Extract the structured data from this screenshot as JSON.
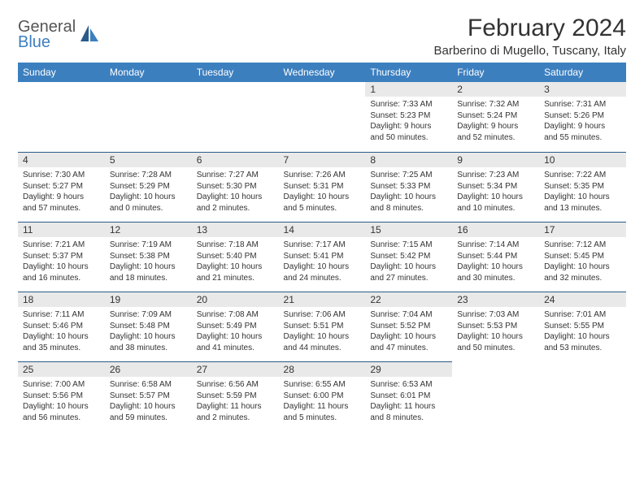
{
  "brand": {
    "line1": "General",
    "line2": "Blue",
    "brand_color": "#3c7fbf"
  },
  "title": "February 2024",
  "location": "Barberino di Mugello, Tuscany, Italy",
  "colors": {
    "header_bg": "#3c7fbf",
    "header_text": "#ffffff",
    "daynum_bg": "#e9e9e9",
    "rule": "#2a5b8a",
    "body_text": "#333333",
    "background": "#ffffff"
  },
  "font_sizes": {
    "title_pt": 30,
    "location_pt": 15,
    "weekday_header_pt": 12,
    "daynum_pt": 12,
    "cell_text_pt": 10
  },
  "weekdays": [
    "Sunday",
    "Monday",
    "Tuesday",
    "Wednesday",
    "Thursday",
    "Friday",
    "Saturday"
  ],
  "weeks": [
    [
      null,
      null,
      null,
      null,
      {
        "d": "1",
        "sr": "Sunrise: 7:33 AM",
        "ss": "Sunset: 5:23 PM",
        "dl1": "Daylight: 9 hours",
        "dl2": "and 50 minutes."
      },
      {
        "d": "2",
        "sr": "Sunrise: 7:32 AM",
        "ss": "Sunset: 5:24 PM",
        "dl1": "Daylight: 9 hours",
        "dl2": "and 52 minutes."
      },
      {
        "d": "3",
        "sr": "Sunrise: 7:31 AM",
        "ss": "Sunset: 5:26 PM",
        "dl1": "Daylight: 9 hours",
        "dl2": "and 55 minutes."
      }
    ],
    [
      {
        "d": "4",
        "sr": "Sunrise: 7:30 AM",
        "ss": "Sunset: 5:27 PM",
        "dl1": "Daylight: 9 hours",
        "dl2": "and 57 minutes."
      },
      {
        "d": "5",
        "sr": "Sunrise: 7:28 AM",
        "ss": "Sunset: 5:29 PM",
        "dl1": "Daylight: 10 hours",
        "dl2": "and 0 minutes."
      },
      {
        "d": "6",
        "sr": "Sunrise: 7:27 AM",
        "ss": "Sunset: 5:30 PM",
        "dl1": "Daylight: 10 hours",
        "dl2": "and 2 minutes."
      },
      {
        "d": "7",
        "sr": "Sunrise: 7:26 AM",
        "ss": "Sunset: 5:31 PM",
        "dl1": "Daylight: 10 hours",
        "dl2": "and 5 minutes."
      },
      {
        "d": "8",
        "sr": "Sunrise: 7:25 AM",
        "ss": "Sunset: 5:33 PM",
        "dl1": "Daylight: 10 hours",
        "dl2": "and 8 minutes."
      },
      {
        "d": "9",
        "sr": "Sunrise: 7:23 AM",
        "ss": "Sunset: 5:34 PM",
        "dl1": "Daylight: 10 hours",
        "dl2": "and 10 minutes."
      },
      {
        "d": "10",
        "sr": "Sunrise: 7:22 AM",
        "ss": "Sunset: 5:35 PM",
        "dl1": "Daylight: 10 hours",
        "dl2": "and 13 minutes."
      }
    ],
    [
      {
        "d": "11",
        "sr": "Sunrise: 7:21 AM",
        "ss": "Sunset: 5:37 PM",
        "dl1": "Daylight: 10 hours",
        "dl2": "and 16 minutes."
      },
      {
        "d": "12",
        "sr": "Sunrise: 7:19 AM",
        "ss": "Sunset: 5:38 PM",
        "dl1": "Daylight: 10 hours",
        "dl2": "and 18 minutes."
      },
      {
        "d": "13",
        "sr": "Sunrise: 7:18 AM",
        "ss": "Sunset: 5:40 PM",
        "dl1": "Daylight: 10 hours",
        "dl2": "and 21 minutes."
      },
      {
        "d": "14",
        "sr": "Sunrise: 7:17 AM",
        "ss": "Sunset: 5:41 PM",
        "dl1": "Daylight: 10 hours",
        "dl2": "and 24 minutes."
      },
      {
        "d": "15",
        "sr": "Sunrise: 7:15 AM",
        "ss": "Sunset: 5:42 PM",
        "dl1": "Daylight: 10 hours",
        "dl2": "and 27 minutes."
      },
      {
        "d": "16",
        "sr": "Sunrise: 7:14 AM",
        "ss": "Sunset: 5:44 PM",
        "dl1": "Daylight: 10 hours",
        "dl2": "and 30 minutes."
      },
      {
        "d": "17",
        "sr": "Sunrise: 7:12 AM",
        "ss": "Sunset: 5:45 PM",
        "dl1": "Daylight: 10 hours",
        "dl2": "and 32 minutes."
      }
    ],
    [
      {
        "d": "18",
        "sr": "Sunrise: 7:11 AM",
        "ss": "Sunset: 5:46 PM",
        "dl1": "Daylight: 10 hours",
        "dl2": "and 35 minutes."
      },
      {
        "d": "19",
        "sr": "Sunrise: 7:09 AM",
        "ss": "Sunset: 5:48 PM",
        "dl1": "Daylight: 10 hours",
        "dl2": "and 38 minutes."
      },
      {
        "d": "20",
        "sr": "Sunrise: 7:08 AM",
        "ss": "Sunset: 5:49 PM",
        "dl1": "Daylight: 10 hours",
        "dl2": "and 41 minutes."
      },
      {
        "d": "21",
        "sr": "Sunrise: 7:06 AM",
        "ss": "Sunset: 5:51 PM",
        "dl1": "Daylight: 10 hours",
        "dl2": "and 44 minutes."
      },
      {
        "d": "22",
        "sr": "Sunrise: 7:04 AM",
        "ss": "Sunset: 5:52 PM",
        "dl1": "Daylight: 10 hours",
        "dl2": "and 47 minutes."
      },
      {
        "d": "23",
        "sr": "Sunrise: 7:03 AM",
        "ss": "Sunset: 5:53 PM",
        "dl1": "Daylight: 10 hours",
        "dl2": "and 50 minutes."
      },
      {
        "d": "24",
        "sr": "Sunrise: 7:01 AM",
        "ss": "Sunset: 5:55 PM",
        "dl1": "Daylight: 10 hours",
        "dl2": "and 53 minutes."
      }
    ],
    [
      {
        "d": "25",
        "sr": "Sunrise: 7:00 AM",
        "ss": "Sunset: 5:56 PM",
        "dl1": "Daylight: 10 hours",
        "dl2": "and 56 minutes."
      },
      {
        "d": "26",
        "sr": "Sunrise: 6:58 AM",
        "ss": "Sunset: 5:57 PM",
        "dl1": "Daylight: 10 hours",
        "dl2": "and 59 minutes."
      },
      {
        "d": "27",
        "sr": "Sunrise: 6:56 AM",
        "ss": "Sunset: 5:59 PM",
        "dl1": "Daylight: 11 hours",
        "dl2": "and 2 minutes."
      },
      {
        "d": "28",
        "sr": "Sunrise: 6:55 AM",
        "ss": "Sunset: 6:00 PM",
        "dl1": "Daylight: 11 hours",
        "dl2": "and 5 minutes."
      },
      {
        "d": "29",
        "sr": "Sunrise: 6:53 AM",
        "ss": "Sunset: 6:01 PM",
        "dl1": "Daylight: 11 hours",
        "dl2": "and 8 minutes."
      },
      null,
      null
    ]
  ]
}
